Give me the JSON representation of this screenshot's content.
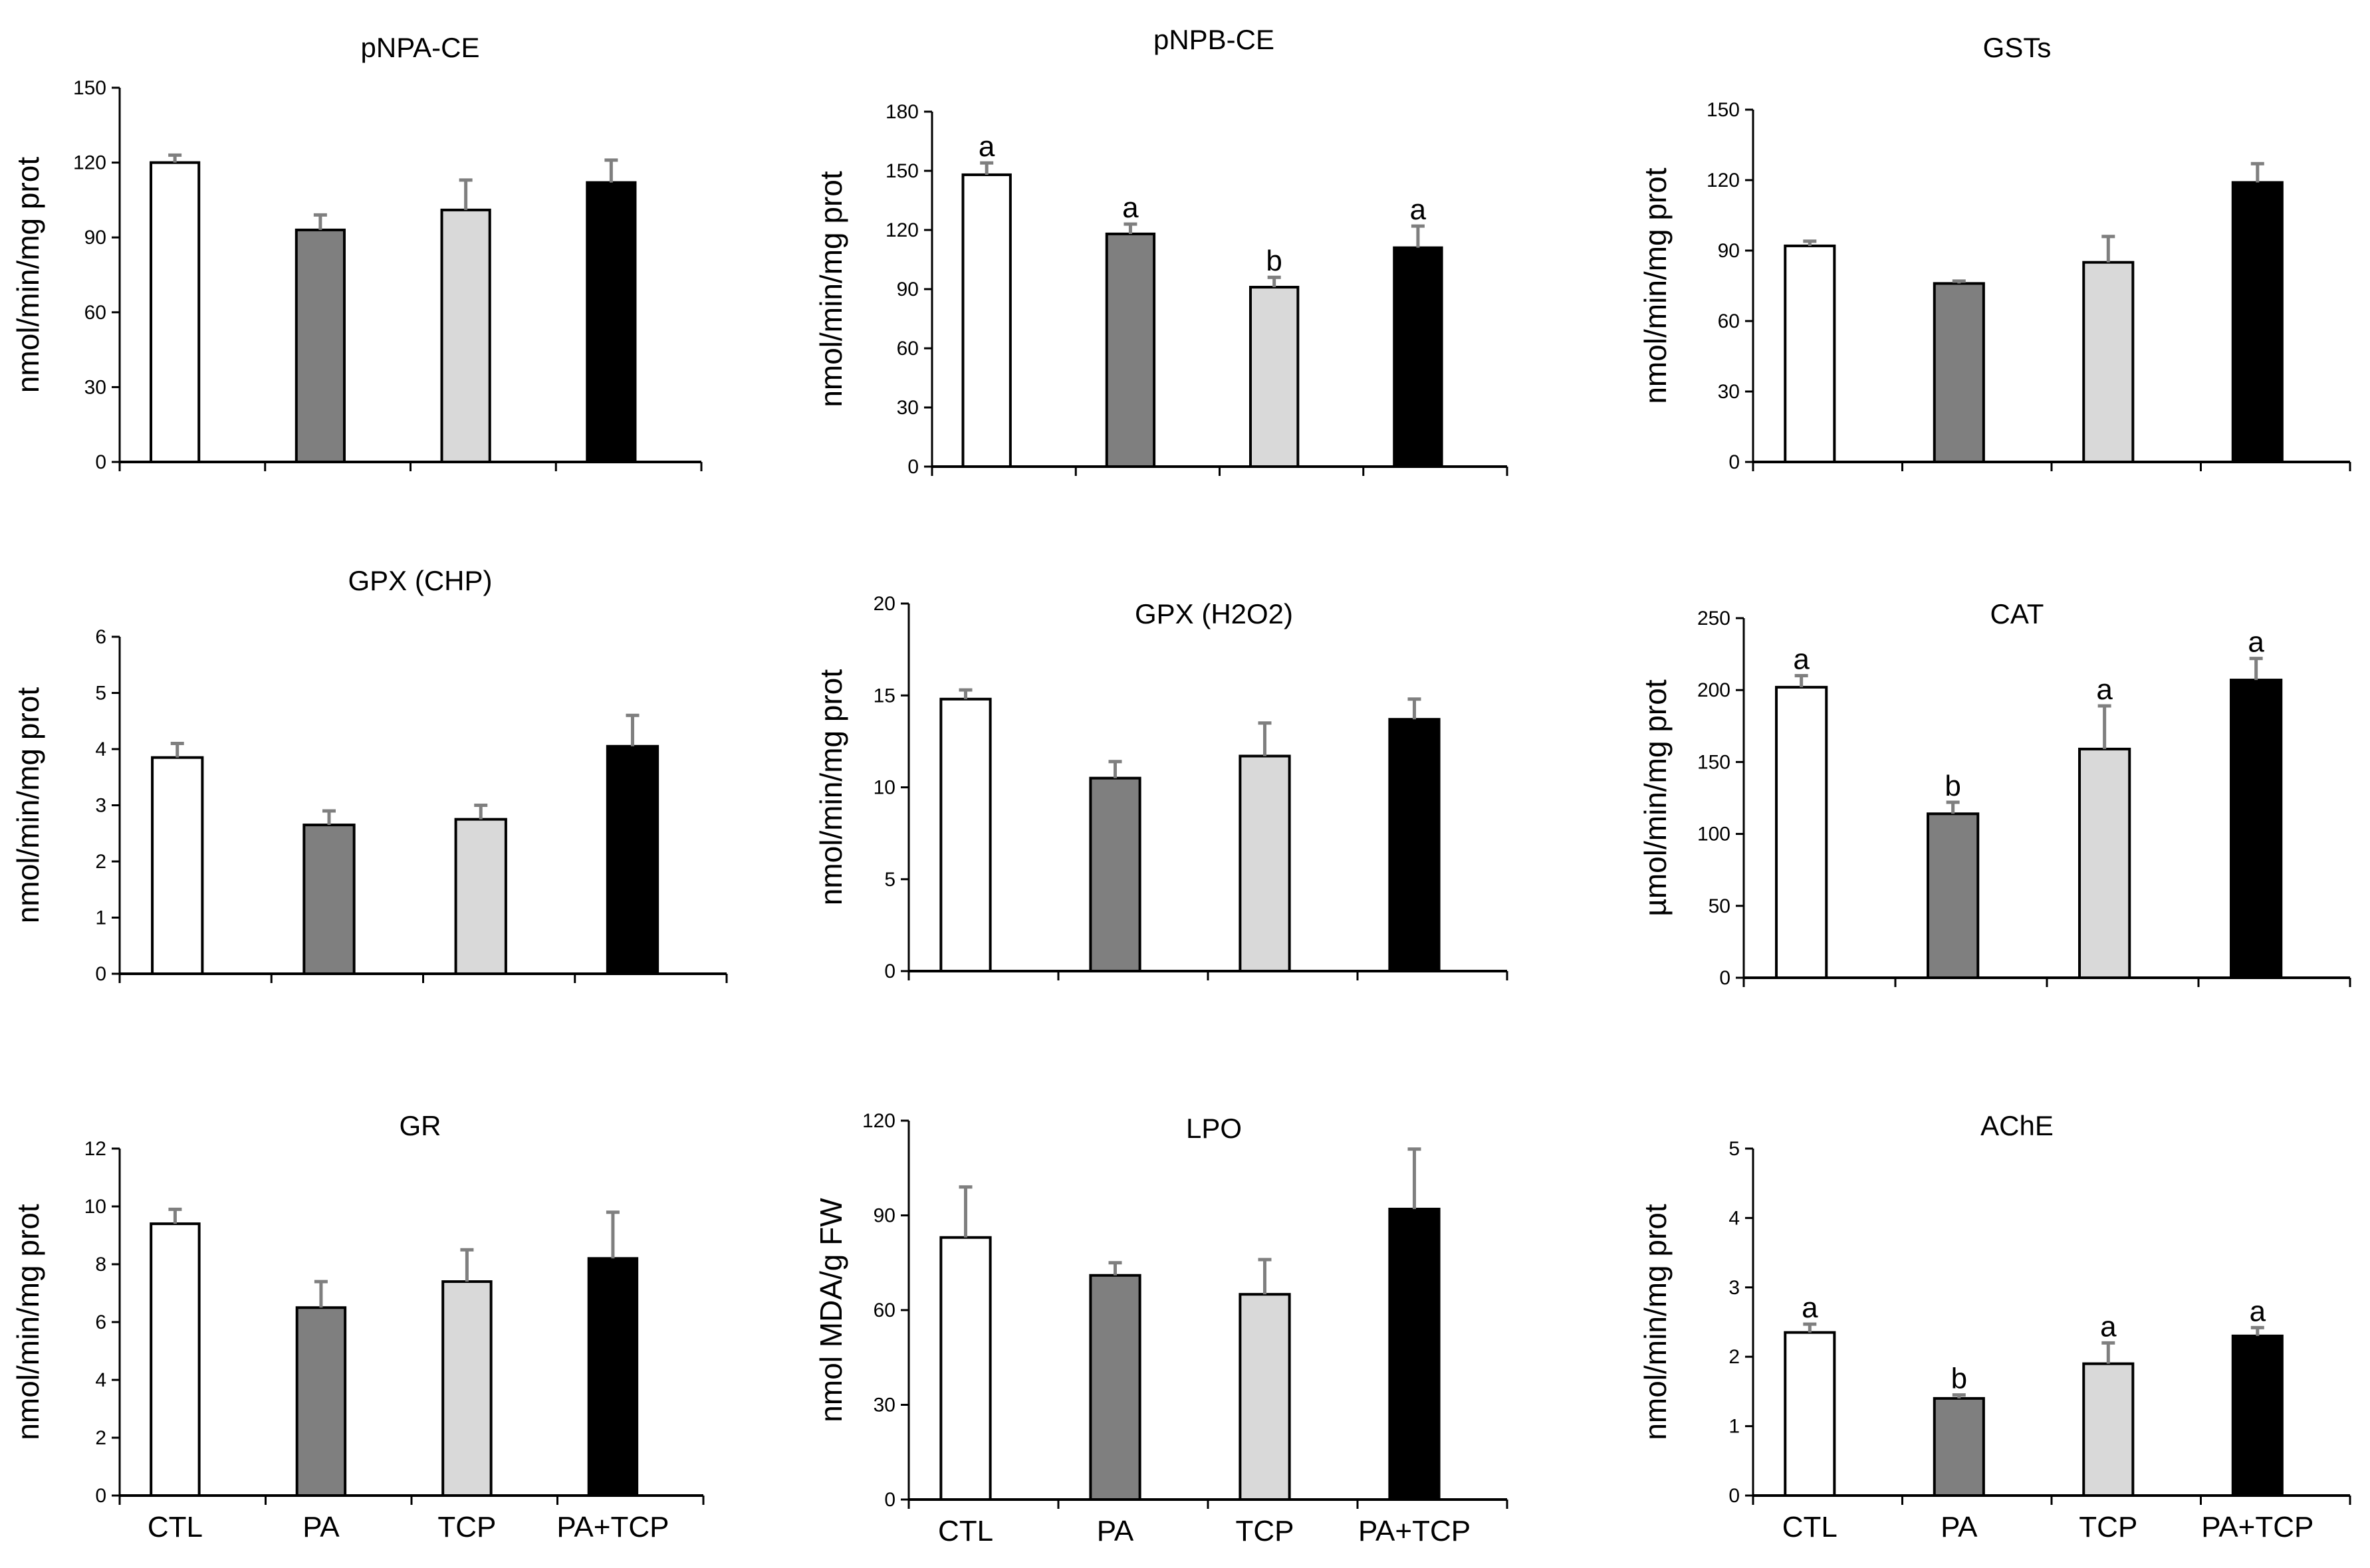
{
  "chart_data": [
    {
      "type": "bar",
      "title": "pNPA-CE",
      "ylabel": "nmol/min/mg prot",
      "ylim": [
        0,
        150
      ],
      "yticks": [
        0,
        30,
        60,
        90,
        120,
        150
      ],
      "categories": [
        "CTL",
        "PA",
        "TCP",
        "PA+TCP"
      ],
      "values": [
        120,
        93,
        101,
        112
      ],
      "errors": [
        3,
        6,
        12,
        9
      ],
      "significance": [
        "",
        "",
        "",
        ""
      ],
      "show_category_labels": false
    },
    {
      "type": "bar",
      "title": "pNPB-CE",
      "ylabel": "nmol/min/mg prot",
      "ylim": [
        0,
        180
      ],
      "yticks": [
        0,
        30,
        60,
        90,
        120,
        150,
        180
      ],
      "categories": [
        "CTL",
        "PA",
        "TCP",
        "PA+TCP"
      ],
      "values": [
        148,
        118,
        91,
        111
      ],
      "errors": [
        6,
        5,
        5,
        11
      ],
      "significance": [
        "a",
        "a",
        "b",
        "a"
      ],
      "show_category_labels": false
    },
    {
      "type": "bar",
      "title": "GSTs",
      "ylabel": "nmol/min/mg prot",
      "ylim": [
        0,
        150
      ],
      "yticks": [
        0,
        30,
        60,
        90,
        120,
        150
      ],
      "categories": [
        "CTL",
        "PA",
        "TCP",
        "PA+TCP"
      ],
      "values": [
        92,
        76,
        85,
        119
      ],
      "errors": [
        2,
        1,
        11,
        8
      ],
      "significance": [
        "",
        "",
        "",
        ""
      ],
      "show_category_labels": false
    },
    {
      "type": "bar",
      "title": "GPX (CHP)",
      "ylabel": "nmol/min/mg prot",
      "ylim": [
        0,
        6
      ],
      "yticks": [
        0,
        1,
        2,
        3,
        4,
        5,
        6
      ],
      "categories": [
        "CTL",
        "PA",
        "TCP",
        "PA+TCP"
      ],
      "values": [
        3.85,
        2.65,
        2.75,
        4.05
      ],
      "errors": [
        0.25,
        0.25,
        0.25,
        0.55
      ],
      "significance": [
        "",
        "",
        "",
        ""
      ],
      "show_category_labels": false
    },
    {
      "type": "bar",
      "title": "GPX (H2O2)",
      "ylabel": "nmol/min/mg prot",
      "ylim": [
        0,
        20
      ],
      "yticks": [
        0,
        5,
        10,
        15,
        20
      ],
      "categories": [
        "CTL",
        "PA",
        "TCP",
        "PA+TCP"
      ],
      "values": [
        14.8,
        10.5,
        11.7,
        13.7
      ],
      "errors": [
        0.5,
        0.9,
        1.8,
        1.1
      ],
      "significance": [
        "",
        "",
        "",
        ""
      ],
      "show_category_labels": false
    },
    {
      "type": "bar",
      "title": "CAT",
      "ylabel": "µmol/min/mg prot",
      "ylim": [
        0,
        250
      ],
      "yticks": [
        0,
        50,
        100,
        150,
        200,
        250
      ],
      "categories": [
        "CTL",
        "PA",
        "TCP",
        "PA+TCP"
      ],
      "values": [
        202,
        114,
        159,
        207
      ],
      "errors": [
        8,
        8,
        30,
        15
      ],
      "significance": [
        "a",
        "b",
        "a",
        "a"
      ],
      "show_category_labels": false
    },
    {
      "type": "bar",
      "title": "GR",
      "ylabel": "nmol/min/mg prot",
      "ylim": [
        0,
        12
      ],
      "yticks": [
        0,
        2,
        4,
        6,
        8,
        10,
        12
      ],
      "categories": [
        "CTL",
        "PA",
        "TCP",
        "PA+TCP"
      ],
      "values": [
        9.4,
        6.5,
        7.4,
        8.2
      ],
      "errors": [
        0.5,
        0.9,
        1.1,
        1.6
      ],
      "significance": [
        "",
        "",
        "",
        ""
      ],
      "show_category_labels": true
    },
    {
      "type": "bar",
      "title": "LPO",
      "ylabel": "nmol MDA/g FW",
      "ylim": [
        0,
        120
      ],
      "yticks": [
        0,
        30,
        60,
        90,
        120
      ],
      "categories": [
        "CTL",
        "PA",
        "TCP",
        "PA+TCP"
      ],
      "values": [
        83,
        71,
        65,
        92
      ],
      "errors": [
        16,
        4,
        11,
        19
      ],
      "significance": [
        "",
        "",
        "",
        ""
      ],
      "show_category_labels": true
    },
    {
      "type": "bar",
      "title": "AChE",
      "ylabel": "nmol/min/mg prot",
      "ylim": [
        0,
        5
      ],
      "yticks": [
        0,
        1,
        2,
        3,
        4,
        5
      ],
      "categories": [
        "CTL",
        "PA",
        "TCP",
        "PA+TCP"
      ],
      "values": [
        2.35,
        1.4,
        1.9,
        2.3
      ],
      "errors": [
        0.12,
        0.05,
        0.3,
        0.12
      ],
      "significance": [
        "a",
        "b",
        "a",
        "a"
      ],
      "show_category_labels": true
    }
  ],
  "colors": {
    "bar_fills": [
      "#ffffff",
      "#7f7f7f",
      "#d9d9d9",
      "#000000"
    ],
    "bar_stroke": "#000000",
    "error_bar": "#7f7f7f",
    "axis": "#000000"
  }
}
